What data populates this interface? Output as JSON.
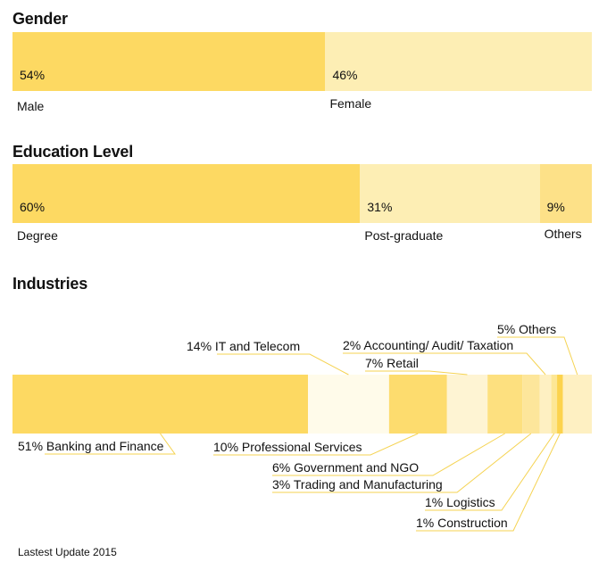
{
  "chart_data": [
    {
      "type": "bar",
      "orientation": "stacked-horizontal",
      "title": "Gender",
      "categories": [
        "Male",
        "Female"
      ],
      "values": [
        54,
        46
      ],
      "value_labels": [
        "54%",
        "46%"
      ],
      "colors": [
        "#fdd962",
        "#fdeeb4"
      ]
    },
    {
      "type": "bar",
      "orientation": "stacked-horizontal",
      "title": "Education Level",
      "categories": [
        "Degree",
        "Post-graduate",
        "Others"
      ],
      "values": [
        60,
        31,
        9
      ],
      "value_labels": [
        "60%",
        "31%",
        "9%"
      ],
      "colors": [
        "#fdd962",
        "#fdeeb4",
        "#fde188"
      ]
    },
    {
      "type": "bar",
      "orientation": "stacked-horizontal",
      "title": "Industries",
      "categories": [
        "Banking and Finance",
        "IT and Telecom",
        "Professional Services",
        "Retail",
        "Government and NGO",
        "Trading and Manufacturing",
        "Accounting/ Audit/ Taxation",
        "Logistics",
        "Construction",
        "Others"
      ],
      "values": [
        51,
        14,
        10,
        7,
        6,
        3,
        2,
        1,
        1,
        5
      ],
      "labels": [
        "51% Banking and Finance",
        "14% IT and Telecom",
        "10% Professional Services",
        "7% Retail",
        "6% Government and NGO",
        "3% Trading and Manufacturing",
        "2% Accounting/ Audit/ Taxation",
        "1% Logistics",
        "1% Construction",
        "5% Others"
      ],
      "colors": [
        "#fdd962",
        "#fffbea",
        "#fddc6e",
        "#fef4d3",
        "#fde07f",
        "#fde69b",
        "#fef0c2",
        "#fde795",
        "#fcd34d",
        "#fef0c2"
      ],
      "leader_color": "#f5d352"
    }
  ],
  "footnote": "Lastest Update 2015"
}
